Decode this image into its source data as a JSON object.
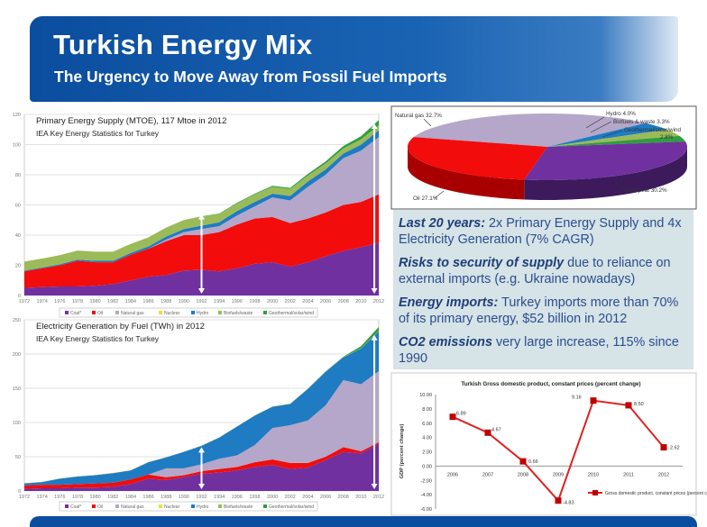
{
  "header": {
    "title": "Turkish Energy Mix",
    "subtitle": "The Urgency to Move Away from Fossil Fuel Imports"
  },
  "panel": {
    "items": [
      {
        "bold": "Last 20 years:",
        "text": " 2x Primary Energy Supply and 4x Electricity Generation (7% CAGR)"
      },
      {
        "bold": "Risks to security of supply",
        "text": " due to reliance on external imports (e.g. Ukraine nowadays)"
      },
      {
        "bold": "Energy imports:",
        "text": " Turkey imports more than 70% of its primary energy, $52 billion in 2012"
      },
      {
        "bold": "CO2 emissions",
        "text": " very large increase, 115% since 1990"
      }
    ]
  },
  "colors": {
    "coal": "#7030a0",
    "oil": "#f20c0c",
    "gas": "#b4a7c9",
    "nuclear": "#e4e43a",
    "hydro": "#1f7bc2",
    "bio": "#9bbb59",
    "geo": "#2e9e3e",
    "gdp_line": "#e02020",
    "banner": "#0b4d9e"
  },
  "chart_data": [
    {
      "type": "area",
      "stacked": true,
      "title": "Primary Energy Supply (MTOE), 117 Mtoe in 2012",
      "subtitle": "IEA Key Energy Statistics for Turkey",
      "ylim": [
        0,
        120
      ],
      "yticks": [
        0,
        20,
        40,
        60,
        80,
        100,
        120
      ],
      "x": [
        1972,
        1974,
        1976,
        1978,
        1980,
        1982,
        1984,
        1986,
        1988,
        1990,
        1992,
        1994,
        1996,
        1998,
        2000,
        2002,
        2004,
        2006,
        2008,
        2010,
        2012
      ],
      "legend_position": "bottom",
      "annotations": [
        {
          "type": "arrow",
          "x": 1992,
          "from": 0,
          "to": 54
        },
        {
          "type": "arrow",
          "x": 2011.5,
          "from": 0,
          "to": 114
        }
      ],
      "series": [
        {
          "name": "Coal*",
          "key": "coal",
          "values": [
            5,
            5.5,
            6,
            6,
            6.5,
            7.5,
            10,
            12.5,
            13.5,
            16.5,
            17,
            16,
            18,
            21,
            22,
            19,
            22,
            26,
            29.5,
            32,
            35
          ]
        },
        {
          "name": "Oil",
          "key": "oil",
          "values": [
            11,
            12.5,
            14,
            17,
            15.5,
            14.5,
            17,
            18.5,
            22.5,
            23.5,
            23,
            26,
            29,
            30,
            30,
            29,
            29,
            29,
            30.5,
            30,
            32
          ]
        },
        {
          "name": "Natural gas",
          "key": "gas",
          "values": [
            0,
            0,
            0,
            0,
            0,
            0,
            0,
            0,
            1,
            2,
            4,
            4,
            6,
            8,
            13,
            15,
            21,
            25,
            31,
            34,
            38
          ]
        },
        {
          "name": "Nuclear",
          "key": "nuclear",
          "values": [
            0,
            0,
            0,
            0,
            0,
            0,
            0,
            0,
            0,
            0,
            0,
            0,
            0,
            0,
            0,
            0,
            0,
            0,
            0,
            0,
            0
          ]
        },
        {
          "name": "Hydro",
          "key": "hydro",
          "values": [
            0.5,
            0.5,
            0.7,
            0.8,
            1,
            1,
            1.2,
            1.5,
            2,
            2,
            2.3,
            2.5,
            3,
            3,
            2.5,
            3,
            3.5,
            3.5,
            3,
            4,
            4.5
          ]
        },
        {
          "name": "Biofuels/waste",
          "key": "bio",
          "values": [
            6,
            6,
            6,
            6,
            6,
            6,
            6,
            6,
            6,
            6,
            6,
            5.5,
            5,
            5,
            4.5,
            4.5,
            4,
            4,
            3.5,
            3.5,
            3.3
          ]
        },
        {
          "name": "Geothermal/solar/wind",
          "key": "geo",
          "values": [
            0,
            0,
            0,
            0,
            0,
            0,
            0,
            0,
            0,
            0,
            0.2,
            0.3,
            0.4,
            0.5,
            0.7,
            0.8,
            1,
            1.3,
            1.5,
            2,
            3.5
          ]
        }
      ]
    },
    {
      "type": "area",
      "stacked": true,
      "title": "Electricity Generation by Fuel (TWh) in 2012",
      "subtitle": "IEA Key Energy Statistics for Turkey",
      "ylim": [
        0,
        250
      ],
      "yticks": [
        0,
        50,
        100,
        150,
        200,
        250
      ],
      "x": [
        1972,
        1974,
        1976,
        1978,
        1980,
        1982,
        1984,
        1986,
        1988,
        1990,
        1992,
        1994,
        1996,
        1998,
        2000,
        2002,
        2004,
        2006,
        2008,
        2010,
        2012
      ],
      "legend_position": "bottom",
      "annotations": [
        {
          "type": "arrow",
          "x": 1992,
          "from": 0,
          "to": 64
        },
        {
          "type": "arrow",
          "x": 2011.5,
          "from": 0,
          "to": 228
        }
      ],
      "series": [
        {
          "name": "Coal*",
          "key": "coal",
          "values": [
            3,
            4,
            4,
            5,
            5,
            6,
            10,
            18,
            16,
            20,
            25,
            27,
            30,
            35,
            38,
            32,
            34,
            45,
            57,
            55,
            69
          ]
        },
        {
          "name": "Oil",
          "key": "oil",
          "values": [
            5,
            5,
            5,
            5,
            6,
            6,
            7,
            6,
            4,
            3,
            4,
            5,
            5,
            7,
            8,
            9,
            7,
            5,
            7,
            3,
            2
          ]
        },
        {
          "name": "Natural gas",
          "key": "gas",
          "values": [
            0,
            0,
            0,
            0,
            0,
            0,
            0,
            0,
            13,
            10,
            10,
            15,
            17,
            25,
            46,
            55,
            62,
            75,
            98,
            98,
            104
          ]
        },
        {
          "name": "Nuclear",
          "key": "nuclear",
          "values": [
            0,
            0,
            0,
            0,
            0,
            0,
            0,
            0,
            0,
            0,
            0,
            0,
            0,
            0,
            0,
            0,
            0,
            0,
            0,
            0,
            0
          ]
        },
        {
          "name": "Hydro",
          "key": "hydro",
          "values": [
            3,
            4,
            9,
            11,
            12,
            14,
            13,
            18,
            16,
            24,
            27,
            31,
            42,
            43,
            31,
            31,
            46,
            49,
            33,
            52,
            58
          ]
        },
        {
          "name": "Biofuels/waste",
          "key": "bio",
          "values": [
            0.3,
            0.3,
            0.3,
            0.3,
            0.3,
            0.3,
            0.3,
            0.3,
            0.3,
            0.3,
            0.3,
            0.3,
            0.3,
            0.3,
            0.3,
            0.3,
            0.3,
            0.3,
            0.3,
            0.5,
            0.7
          ]
        },
        {
          "name": "Geothermal/solar/wind",
          "key": "geo",
          "values": [
            0,
            0,
            0,
            0,
            0,
            0,
            0,
            0,
            0,
            0,
            0,
            0,
            0,
            0,
            0.1,
            0.2,
            0.2,
            0.3,
            0.8,
            3,
            6
          ]
        }
      ]
    },
    {
      "type": "pie",
      "slices": [
        {
          "name": "Natural gas",
          "label": "Natural gas 32.7%",
          "value": 32.7,
          "key": "gas"
        },
        {
          "name": "Hydro",
          "label": "Hydro 4.0%",
          "value": 4.0,
          "key": "hydro"
        },
        {
          "name": "Biofuels & waste",
          "label": "Biofuels & waste 3.3%",
          "value": 3.3,
          "key": "bio"
        },
        {
          "name": "Geothermal/solar/wind",
          "label": "Geothermal/solar/wind",
          "label2": "2.8%",
          "value": 2.8,
          "key": "geo"
        },
        {
          "name": "Coal/peat",
          "label": "Coal/peat 30.2%",
          "value": 30.2,
          "key": "coal"
        },
        {
          "name": "Oil",
          "label": "Oil 27.1%",
          "value": 27.1,
          "key": "oil"
        }
      ]
    },
    {
      "type": "line",
      "title": "Turkish Gross domestic product, constant prices (percent change)",
      "ylabel": "GDP (percent change)",
      "ylim": [
        -6,
        10
      ],
      "yticks": [
        "-6.00",
        "-4.00",
        "-2.00",
        "0.00",
        "2.00",
        "4.00",
        "6.00",
        "8.00",
        "10.00"
      ],
      "categories": [
        "2006",
        "2007",
        "2008",
        "2009",
        "2010",
        "2011",
        "2012"
      ],
      "values": [
        6.89,
        4.67,
        0.66,
        -4.83,
        9.16,
        8.5,
        2.62
      ],
      "data_labels": [
        "6.89",
        "4.67",
        "0.66",
        "-4.83",
        "9.16",
        "8.50",
        "2.62"
      ],
      "legend": "Gross domestic product, constant prices (percent change)",
      "legend_position": "bottom-right"
    }
  ]
}
